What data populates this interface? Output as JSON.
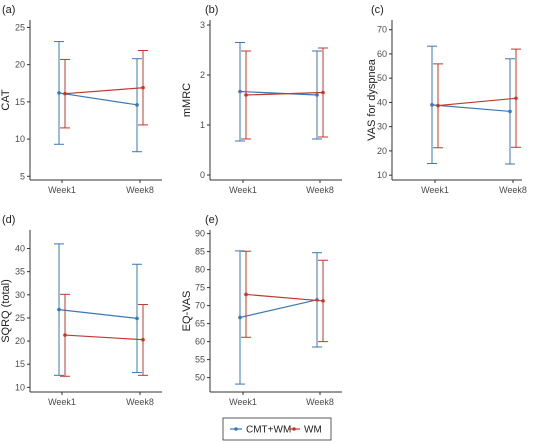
{
  "legend": {
    "items": [
      {
        "name": "CMT+WM",
        "color": "#3a78b5"
      },
      {
        "name": "WM",
        "color": "#c0392b"
      }
    ]
  },
  "chart_data": [
    {
      "type": "line",
      "panel_label": "(a)",
      "ylabel": "CAT",
      "categories": [
        "Week1",
        "Week8"
      ],
      "ylim": [
        4.5,
        26
      ],
      "yticks": [
        5,
        10,
        15,
        20,
        25
      ],
      "series": [
        {
          "name": "CMT+WM",
          "values": [
            16.2,
            14.6
          ],
          "lower": [
            9.3,
            8.3
          ],
          "upper": [
            23.1,
            20.8
          ]
        },
        {
          "name": "WM",
          "values": [
            16.1,
            16.9
          ],
          "lower": [
            11.5,
            11.9
          ],
          "upper": [
            20.7,
            21.9
          ]
        }
      ]
    },
    {
      "type": "line",
      "panel_label": "(b)",
      "ylabel": "mMRC",
      "categories": [
        "Week1",
        "Week8"
      ],
      "ylim": [
        -0.1,
        3.1
      ],
      "yticks": [
        0,
        1,
        2,
        3
      ],
      "series": [
        {
          "name": "CMT+WM",
          "values": [
            1.67,
            1.6
          ],
          "lower": [
            0.68,
            0.72
          ],
          "upper": [
            2.65,
            2.48
          ]
        },
        {
          "name": "WM",
          "values": [
            1.6,
            1.65
          ],
          "lower": [
            0.72,
            0.76
          ],
          "upper": [
            2.48,
            2.54
          ]
        }
      ]
    },
    {
      "type": "line",
      "panel_label": "(c)",
      "ylabel": "VAS for dyspnea",
      "categories": [
        "Week1",
        "Week8"
      ],
      "ylim": [
        8,
        74
      ],
      "yticks": [
        10,
        20,
        30,
        40,
        50,
        60,
        70
      ],
      "series": [
        {
          "name": "CMT+WM",
          "values": [
            39,
            36.3
          ],
          "lower": [
            14.8,
            14.6
          ],
          "upper": [
            63.2,
            58.0
          ]
        },
        {
          "name": "WM",
          "values": [
            38.7,
            41.7
          ],
          "lower": [
            21.3,
            21.5
          ],
          "upper": [
            55.9,
            62.0
          ]
        }
      ]
    },
    {
      "type": "line",
      "panel_label": "(d)",
      "ylabel": "SQRQ (total)",
      "categories": [
        "Week1",
        "Week8"
      ],
      "ylim": [
        9,
        44
      ],
      "yticks": [
        10,
        15,
        20,
        25,
        30,
        35,
        40
      ],
      "series": [
        {
          "name": "CMT+WM",
          "values": [
            26.8,
            24.9
          ],
          "lower": [
            12.6,
            13.2
          ],
          "upper": [
            41.0,
            36.6
          ]
        },
        {
          "name": "WM",
          "values": [
            21.3,
            20.3
          ],
          "lower": [
            12.4,
            12.6
          ],
          "upper": [
            30.1,
            27.9
          ]
        }
      ]
    },
    {
      "type": "line",
      "panel_label": "(e)",
      "ylabel": "EQ-VAS",
      "categories": [
        "Week1",
        "Week8"
      ],
      "ylim": [
        46,
        91
      ],
      "yticks": [
        50,
        55,
        60,
        65,
        70,
        75,
        80,
        85,
        90
      ],
      "series": [
        {
          "name": "CMT+WM",
          "values": [
            66.7,
            71.6
          ],
          "lower": [
            48.2,
            58.5
          ],
          "upper": [
            85.2,
            84.7
          ]
        },
        {
          "name": "WM",
          "values": [
            73.1,
            71.3
          ],
          "lower": [
            61.2,
            60.0
          ],
          "upper": [
            85.1,
            82.6
          ]
        }
      ]
    }
  ]
}
